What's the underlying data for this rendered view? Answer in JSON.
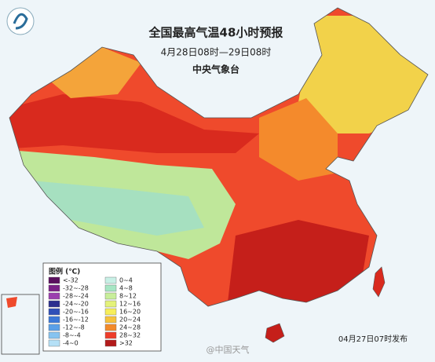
{
  "header": {
    "title": "全国最高气温48小时预报",
    "subtitle": "4月28日08时—29日08时",
    "issuer": "中央气象台"
  },
  "legend": {
    "title": "图例 (℃)",
    "items": [
      {
        "label": "<-32",
        "color": "#5a0f5e"
      },
      {
        "label": "-32~-28",
        "color": "#7a1f86"
      },
      {
        "label": "-28~-24",
        "color": "#9b3fae"
      },
      {
        "label": "-24~-20",
        "color": "#2b2f8f"
      },
      {
        "label": "-20~-16",
        "color": "#2f4fb8"
      },
      {
        "label": "-16~-12",
        "color": "#3b78d8"
      },
      {
        "label": "-12~-8",
        "color": "#5aa0e8"
      },
      {
        "label": "-8~-4",
        "color": "#86c3f0"
      },
      {
        "label": "-4~0",
        "color": "#b5e0f6"
      },
      {
        "label": "0~4",
        "color": "#c8f0e6"
      },
      {
        "label": "4~8",
        "color": "#a6e6c4"
      },
      {
        "label": "8~12",
        "color": "#c8ee9a"
      },
      {
        "label": "12~16",
        "color": "#e4f27a"
      },
      {
        "label": "16~20",
        "color": "#f7ee5a"
      },
      {
        "label": "20~24",
        "color": "#f7c23c"
      },
      {
        "label": "24~28",
        "color": "#f38a2a"
      },
      {
        "label": "28~32",
        "color": "#ee3d2a"
      },
      {
        "label": ">32",
        "color": "#b31b1b"
      }
    ]
  },
  "footer": {
    "issued": "04月27日07时发布",
    "watermark": "@中国天气"
  }
}
